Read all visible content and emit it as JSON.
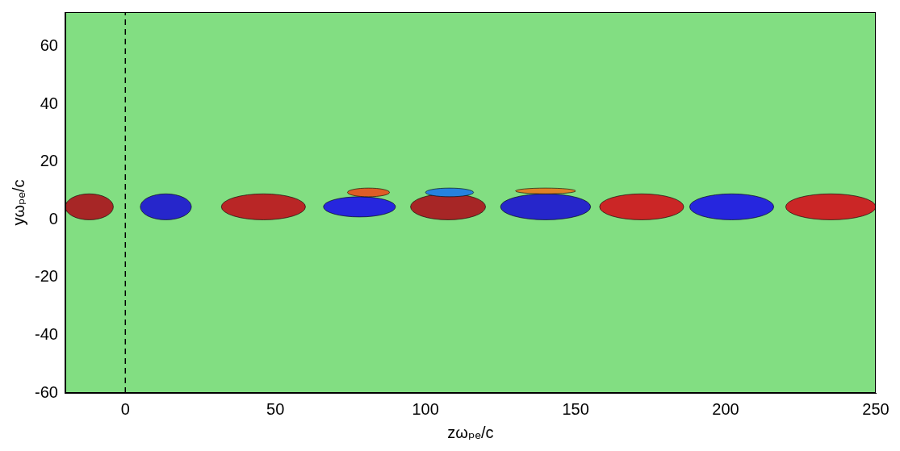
{
  "chart_data": {
    "type": "heatmap",
    "x_label": "zωₚₑ/c",
    "y_label": "yωₚₑ/c",
    "xlim": [
      -20,
      250
    ],
    "ylim": [
      -60,
      72
    ],
    "xticks": [
      0,
      50,
      100,
      150,
      200,
      250
    ],
    "yticks": [
      -60,
      -40,
      -20,
      0,
      20,
      40,
      60
    ],
    "grid": false,
    "color_range": [
      -1,
      1
    ],
    "fill_value": 0,
    "cells": [
      {
        "z": [
          -20,
          -4
        ],
        "y": [
          0,
          9
        ],
        "value": 0.9
      },
      {
        "z": [
          5,
          22
        ],
        "y": [
          0,
          9
        ],
        "value": -0.8
      },
      {
        "z": [
          32,
          60
        ],
        "y": [
          0,
          9
        ],
        "value": 0.85
      },
      {
        "z": [
          66,
          90
        ],
        "y": [
          1,
          8
        ],
        "value": -0.75
      },
      {
        "z": [
          74,
          88
        ],
        "y": [
          8,
          11
        ],
        "value": 0.6
      },
      {
        "z": [
          95,
          120
        ],
        "y": [
          0,
          9
        ],
        "value": 0.9
      },
      {
        "z": [
          100,
          116
        ],
        "y": [
          8,
          11
        ],
        "value": -0.5
      },
      {
        "z": [
          125,
          155
        ],
        "y": [
          0,
          9
        ],
        "value": -0.8
      },
      {
        "z": [
          130,
          150
        ],
        "y": [
          9,
          11
        ],
        "value": 0.5
      },
      {
        "z": [
          158,
          186
        ],
        "y": [
          0,
          9
        ],
        "value": 0.8
      },
      {
        "z": [
          188,
          216
        ],
        "y": [
          0,
          9
        ],
        "value": -0.75
      },
      {
        "z": [
          220,
          250
        ],
        "y": [
          0,
          9
        ],
        "value": 0.8
      }
    ],
    "reference_line": {
      "x": 0,
      "line_style": "dashed",
      "color": "#000000"
    }
  }
}
